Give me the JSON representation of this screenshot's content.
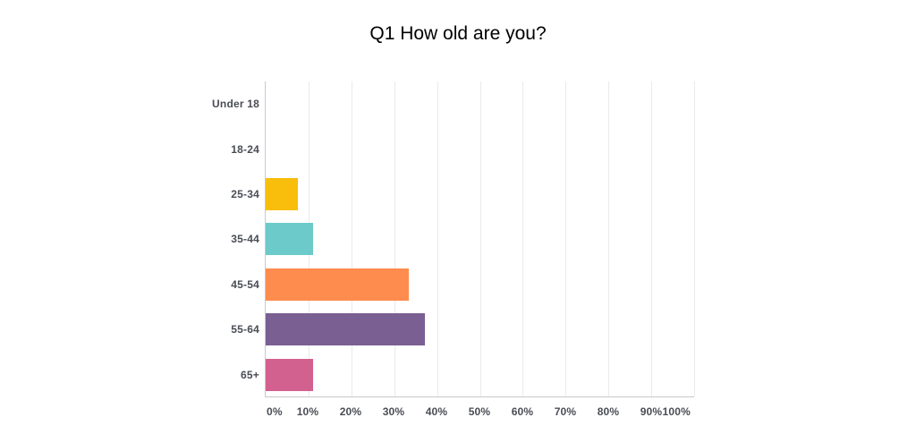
{
  "title": "Q1 How old are you?",
  "chart_data": {
    "type": "bar",
    "orientation": "horizontal",
    "title": "Q1 How old are you?",
    "categories": [
      "Under 18",
      "18-24",
      "25-34",
      "35-44",
      "45-54",
      "55-64",
      "65+"
    ],
    "values": [
      0,
      0,
      7.41,
      11.11,
      33.33,
      37.04,
      11.11
    ],
    "value_unit": "percent",
    "bar_colors": [
      null,
      null,
      "#f8be0b",
      "#6ccaca",
      "#fe8c4e",
      "#7a5f93",
      "#d3618f"
    ],
    "xlabel": "",
    "ylabel": "",
    "xlim": [
      0,
      100
    ],
    "x_ticks": [
      "0%",
      "10%",
      "20%",
      "30%",
      "40%",
      "50%",
      "60%",
      "70%",
      "80%",
      "90%",
      "100%"
    ],
    "grid": true,
    "legend": false
  },
  "colors": {
    "background": "#ffffff",
    "axis_line": "#c6c9cd",
    "gridline": "#e9eaec",
    "label_text": "#4a4d55",
    "title_text": "#000000"
  }
}
